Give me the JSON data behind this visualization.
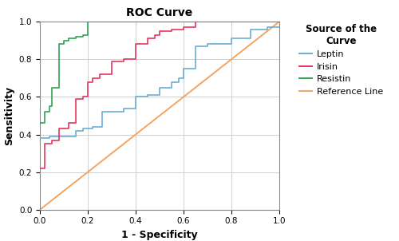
{
  "title": "ROC Curve",
  "xlabel": "1 - Specificity",
  "ylabel": "Sensitivity",
  "legend_title": "Source of the\nCurve",
  "legend_entries": [
    "Leptin",
    "Irisin",
    "Resistin",
    "Reference Line"
  ],
  "line_colors": {
    "leptin": "#6baed6",
    "irisin": "#e8365d",
    "resistin": "#31a354",
    "reference": "#f4a460"
  },
  "background_color": "#ffffff",
  "grid_color": "#d0d0d0",
  "xlim": [
    0.0,
    1.0
  ],
  "ylim": [
    0.0,
    1.0
  ],
  "xticks": [
    0.0,
    0.2,
    0.4,
    0.6,
    0.8,
    1.0
  ],
  "yticks": [
    0.0,
    0.2,
    0.4,
    0.6,
    0.8,
    1.0
  ],
  "leptin_fpr": [
    0.0,
    0.0,
    0.04,
    0.04,
    0.05,
    0.05,
    0.15,
    0.15,
    0.18,
    0.18,
    0.2,
    0.2,
    0.22,
    0.22,
    0.26,
    0.26,
    0.35,
    0.35,
    0.4,
    0.4,
    0.45,
    0.45,
    0.5,
    0.5,
    0.55,
    0.55,
    0.58,
    0.58,
    0.6,
    0.6,
    0.65,
    0.65,
    0.7,
    0.7,
    0.8,
    0.8,
    0.88,
    0.88,
    0.95,
    0.95,
    1.0
  ],
  "leptin_tpr": [
    0.38,
    0.38,
    0.38,
    0.39,
    0.39,
    0.39,
    0.39,
    0.42,
    0.42,
    0.43,
    0.43,
    0.43,
    0.43,
    0.44,
    0.44,
    0.52,
    0.52,
    0.54,
    0.54,
    0.6,
    0.6,
    0.61,
    0.61,
    0.65,
    0.65,
    0.68,
    0.68,
    0.7,
    0.7,
    0.75,
    0.75,
    0.87,
    0.87,
    0.88,
    0.88,
    0.91,
    0.91,
    0.96,
    0.96,
    0.97,
    0.97
  ],
  "irisin_fpr": [
    0.0,
    0.0,
    0.02,
    0.02,
    0.05,
    0.05,
    0.08,
    0.08,
    0.12,
    0.12,
    0.15,
    0.15,
    0.18,
    0.18,
    0.2,
    0.2,
    0.22,
    0.22,
    0.25,
    0.25,
    0.3,
    0.3,
    0.35,
    0.35,
    0.4,
    0.4,
    0.45,
    0.45,
    0.48,
    0.48,
    0.5,
    0.5,
    0.55,
    0.55,
    0.6,
    0.6,
    0.65,
    0.65,
    1.0
  ],
  "irisin_tpr": [
    0.22,
    0.22,
    0.22,
    0.35,
    0.35,
    0.37,
    0.37,
    0.43,
    0.43,
    0.46,
    0.46,
    0.59,
    0.59,
    0.6,
    0.6,
    0.68,
    0.68,
    0.7,
    0.7,
    0.72,
    0.72,
    0.79,
    0.79,
    0.8,
    0.8,
    0.88,
    0.88,
    0.91,
    0.91,
    0.93,
    0.93,
    0.95,
    0.95,
    0.96,
    0.96,
    0.97,
    0.97,
    1.0,
    1.0
  ],
  "resistin_fpr": [
    0.0,
    0.0,
    0.02,
    0.02,
    0.04,
    0.04,
    0.05,
    0.05,
    0.08,
    0.08,
    0.1,
    0.1,
    0.12,
    0.12,
    0.15,
    0.15,
    0.18,
    0.18,
    0.2,
    0.2,
    1.0
  ],
  "resistin_tpr": [
    0.46,
    0.46,
    0.46,
    0.52,
    0.52,
    0.55,
    0.55,
    0.65,
    0.65,
    0.88,
    0.88,
    0.9,
    0.9,
    0.91,
    0.91,
    0.92,
    0.92,
    0.93,
    0.93,
    1.0,
    1.0
  ],
  "figwidth": 5.0,
  "figheight": 3.02,
  "dpi": 100
}
